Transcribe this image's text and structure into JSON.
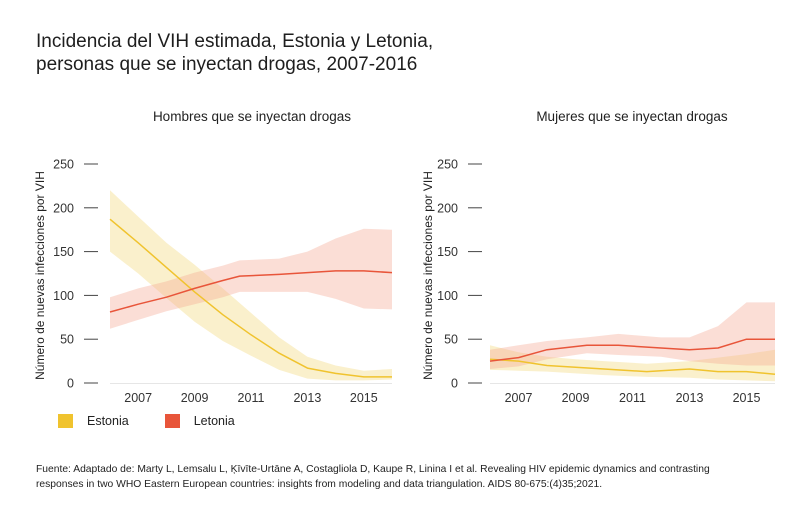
{
  "title": {
    "line1": "Incidencia del VIH estimada, Estonia y Letonia,",
    "line2": "personas que se inyectan drogas, 2007-2016"
  },
  "legend": [
    {
      "label": "Estonia",
      "color": "#f0c32e"
    },
    {
      "label": "Letonia",
      "color": "#e8553a"
    }
  ],
  "band_colors": {
    "Estonia": "#f9eecb",
    "Letonia": "#fbe3dc"
  },
  "footnote": {
    "line1": "Fuente: Adaptado de: Marty L, Lemsalu L, Ķīvīte-Urtāne A, Costagliola D, Kaupe R, Linina I et al. Revealing HIV epidemic dynamics and contrasting",
    "line2": "responses in two WHO Eastern European countries: insights from modeling and data triangulation. AIDS 80-675:(4)35;2021."
  },
  "chart_data": [
    {
      "type": "line",
      "title": "Hombres que se inyectan drogas",
      "xlabel": "",
      "ylabel": "Número de nuevas infecciones por VIH",
      "xlim": [
        2006,
        2016
      ],
      "ylim": [
        0,
        250
      ],
      "xticks": [
        2007,
        2009,
        2011,
        2013,
        2015
      ],
      "yticks": [
        0,
        50,
        100,
        150,
        200,
        250
      ],
      "grid": false,
      "legend": "bottom-left",
      "series": [
        {
          "name": "Estonia",
          "x": [
            2006,
            2007,
            2008,
            2009,
            2010,
            2011,
            2012,
            2013,
            2014,
            2015,
            2016
          ],
          "values": [
            187,
            160,
            132,
            104,
            78,
            55,
            34,
            17,
            11,
            7,
            7
          ],
          "lower": [
            150,
            125,
            97,
            70,
            48,
            31,
            15,
            5,
            3,
            3,
            4
          ],
          "upper": [
            220,
            190,
            160,
            135,
            108,
            80,
            52,
            30,
            20,
            14,
            16
          ]
        },
        {
          "name": "Letonia",
          "x": [
            2006,
            2007,
            2008,
            2009,
            2010,
            2010.6,
            2012,
            2013,
            2014,
            2015,
            2016
          ],
          "values": [
            81,
            90,
            98,
            108,
            117,
            122,
            124,
            126,
            128,
            128,
            126
          ],
          "lower": [
            62,
            72,
            82,
            90,
            98,
            104,
            104,
            104,
            96,
            85,
            84
          ],
          "upper": [
            98,
            108,
            116,
            126,
            134,
            140,
            142,
            150,
            165,
            176,
            175
          ]
        }
      ]
    },
    {
      "type": "line",
      "title": "Mujeres que se inyectan drogas",
      "xlabel": "",
      "ylabel": "Número de nuevas infecciones por VIH",
      "xlim": [
        2006,
        2016
      ],
      "ylim": [
        0,
        250
      ],
      "xticks": [
        2007,
        2009,
        2011,
        2013,
        2015
      ],
      "yticks": [
        0,
        50,
        100,
        150,
        200,
        250
      ],
      "grid": false,
      "legend": "none",
      "series": [
        {
          "name": "Estonia",
          "x": [
            2006,
            2007,
            2008,
            2009,
            2010,
            2011.5,
            2013,
            2014,
            2015,
            2016
          ],
          "values": [
            27,
            25,
            20,
            18,
            16,
            13,
            16,
            13,
            13,
            10
          ],
          "lower": [
            15,
            14,
            13,
            11,
            9,
            7,
            6,
            4,
            3,
            2
          ],
          "upper": [
            43,
            35,
            30,
            27,
            25,
            22,
            25,
            29,
            33,
            38
          ]
        },
        {
          "name": "Letonia",
          "x": [
            2006,
            2007,
            2008,
            2009.4,
            2010.5,
            2012,
            2013,
            2014,
            2015,
            2016
          ],
          "values": [
            25,
            29,
            38,
            43,
            43,
            40,
            38,
            40,
            50,
            50
          ],
          "lower": [
            16,
            19,
            27,
            34,
            32,
            30,
            25,
            22,
            20,
            20
          ],
          "upper": [
            38,
            43,
            48,
            52,
            56,
            52,
            52,
            65,
            92,
            92
          ]
        }
      ]
    }
  ]
}
